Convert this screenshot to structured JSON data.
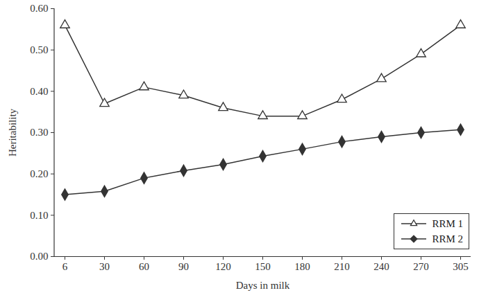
{
  "chart_data": {
    "type": "line",
    "x_label": "Days in milk",
    "y_label": "Heritability",
    "categories": [
      6,
      30,
      60,
      90,
      120,
      150,
      180,
      210,
      240,
      270,
      305
    ],
    "series": [
      {
        "name": "RRM 1",
        "color": "#333333",
        "marker": "open_triangle",
        "values": [
          0.56,
          0.37,
          0.41,
          0.39,
          0.36,
          0.34,
          0.34,
          0.38,
          0.43,
          0.49,
          0.56
        ]
      },
      {
        "name": "RRM 2",
        "color": "#333333",
        "marker": "diamond",
        "values": [
          0.15,
          0.158,
          0.19,
          0.208,
          0.223,
          0.243,
          0.26,
          0.278,
          0.29,
          0.3,
          0.307
        ]
      }
    ],
    "ylim": [
      0,
      0.6
    ],
    "yticks": [
      {
        "value": 0,
        "label": "0.00"
      },
      {
        "value": 0.1,
        "label": "0.10"
      },
      {
        "value": 0.2,
        "label": "0.20"
      },
      {
        "value": 0.3,
        "label": "0.30"
      },
      {
        "value": 0.4,
        "label": "0.40"
      },
      {
        "value": 0.5,
        "label": "0.50"
      },
      {
        "value": 0.6,
        "label": "0.60"
      }
    ],
    "grid": false,
    "legend": "lower right"
  }
}
